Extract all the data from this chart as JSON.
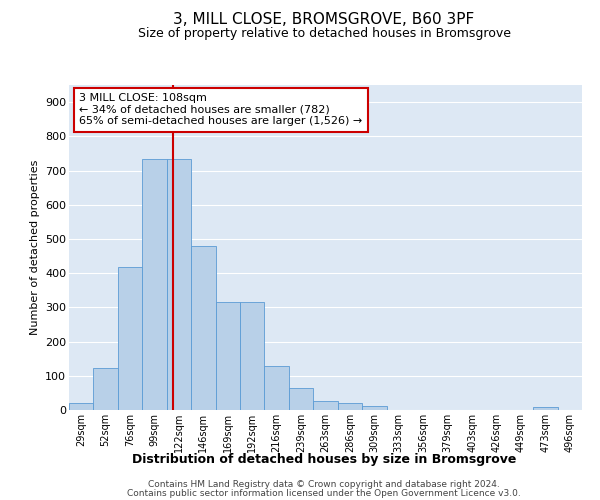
{
  "title": "3, MILL CLOSE, BROMSGROVE, B60 3PF",
  "subtitle": "Size of property relative to detached houses in Bromsgrove",
  "xlabel": "Distribution of detached houses by size in Bromsgrove",
  "ylabel": "Number of detached properties",
  "categories": [
    "29sqm",
    "52sqm",
    "76sqm",
    "99sqm",
    "122sqm",
    "146sqm",
    "169sqm",
    "192sqm",
    "216sqm",
    "239sqm",
    "263sqm",
    "286sqm",
    "309sqm",
    "333sqm",
    "356sqm",
    "379sqm",
    "403sqm",
    "426sqm",
    "449sqm",
    "473sqm",
    "496sqm"
  ],
  "values": [
    20,
    122,
    418,
    733,
    733,
    480,
    315,
    315,
    130,
    65,
    25,
    20,
    12,
    0,
    0,
    0,
    0,
    0,
    0,
    8,
    0
  ],
  "bar_color": "#b8d0e8",
  "bar_edge_color": "#5b9bd5",
  "vline_x_index": 3.75,
  "vline_color": "#cc0000",
  "annotation_text": "3 MILL CLOSE: 108sqm\n← 34% of detached houses are smaller (782)\n65% of semi-detached houses are larger (1,526) →",
  "annotation_box_color": "#ffffff",
  "annotation_box_edge_color": "#cc0000",
  "ylim": [
    0,
    950
  ],
  "yticks": [
    0,
    100,
    200,
    300,
    400,
    500,
    600,
    700,
    800,
    900
  ],
  "background_color": "#dde8f4",
  "grid_color": "#ffffff",
  "footer_line1": "Contains HM Land Registry data © Crown copyright and database right 2024.",
  "footer_line2": "Contains public sector information licensed under the Open Government Licence v3.0."
}
